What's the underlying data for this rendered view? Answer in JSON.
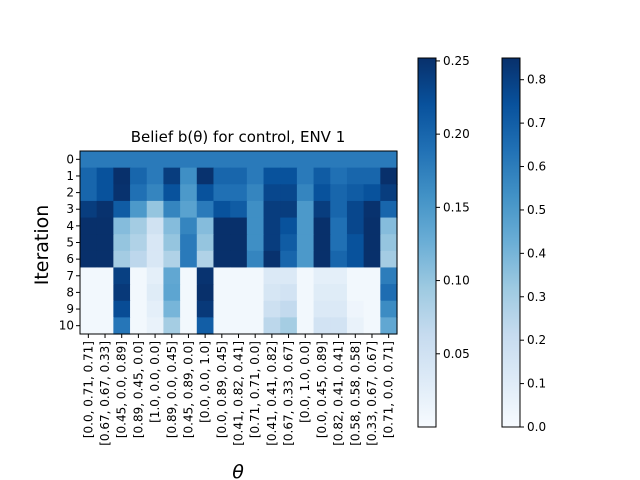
{
  "chart_data": {
    "type": "heatmap",
    "title": "Belief b(θ) for control, ENV 1",
    "xlabel": "θ",
    "ylabel": "Iteration",
    "y_categories": [
      "0",
      "1",
      "2",
      "3",
      "4",
      "5",
      "6",
      "7",
      "8",
      "9",
      "10"
    ],
    "x_categories": [
      "[0.0, 0.71, 0.71]",
      "[0.67, 0.67, 0.33]",
      "[0.45, 0.0, 0.89]",
      "[0.89, 0.45, 0.0]",
      "[1.0, 0.0, 0.0]",
      "[0.89, 0.0, 0.45]",
      "[0.45, 0.89, 0.0]",
      "[0.0, 0.0, 1.0]",
      "[0.0, 0.89, 0.45]",
      "[0.41, 0.82, 0.41]",
      "[0.71, 0.71, 0.0]",
      "[0.41, 0.41, 0.82]",
      "[0.67, 0.33, 0.67]",
      "[0.0, 1.0, 0.0]",
      "[0.0, 0.45, 0.89]",
      "[0.82, 0.41, 0.41]",
      "[0.58, 0.58, 0.58]",
      "[0.33, 0.67, 0.67]",
      "[0.71, 0.0, 0.71]"
    ],
    "values": [
      [
        0.18,
        0.18,
        0.18,
        0.18,
        0.18,
        0.18,
        0.18,
        0.18,
        0.18,
        0.18,
        0.18,
        0.18,
        0.18,
        0.18,
        0.18,
        0.18,
        0.18,
        0.18,
        0.18
      ],
      [
        0.2,
        0.22,
        0.27,
        0.2,
        0.18,
        0.24,
        0.16,
        0.25,
        0.2,
        0.2,
        0.18,
        0.22,
        0.22,
        0.18,
        0.21,
        0.19,
        0.2,
        0.2,
        0.27
      ],
      [
        0.2,
        0.22,
        0.25,
        0.19,
        0.17,
        0.22,
        0.15,
        0.22,
        0.19,
        0.19,
        0.17,
        0.23,
        0.23,
        0.17,
        0.22,
        0.2,
        0.21,
        0.22,
        0.24
      ],
      [
        0.24,
        0.25,
        0.21,
        0.15,
        0.1,
        0.17,
        0.14,
        0.18,
        0.22,
        0.21,
        0.16,
        0.24,
        0.24,
        0.15,
        0.24,
        0.2,
        0.23,
        0.25,
        0.2
      ],
      [
        0.33,
        0.31,
        0.11,
        0.09,
        0.05,
        0.11,
        0.17,
        0.11,
        0.29,
        0.29,
        0.16,
        0.24,
        0.22,
        0.15,
        0.27,
        0.19,
        0.23,
        0.29,
        0.11
      ],
      [
        0.34,
        0.32,
        0.1,
        0.08,
        0.04,
        0.1,
        0.18,
        0.1,
        0.31,
        0.31,
        0.16,
        0.24,
        0.21,
        0.15,
        0.29,
        0.19,
        0.22,
        0.3,
        0.1
      ],
      [
        0.33,
        0.3,
        0.09,
        0.07,
        0.04,
        0.08,
        0.18,
        0.08,
        0.3,
        0.29,
        0.17,
        0.25,
        0.2,
        0.15,
        0.3,
        0.2,
        0.22,
        0.29,
        0.09
      ],
      [
        0.02,
        0.02,
        0.8,
        0.02,
        0.08,
        0.45,
        0.02,
        0.84,
        0.02,
        0.02,
        0.02,
        0.12,
        0.12,
        0.02,
        0.08,
        0.08,
        0.02,
        0.02,
        0.6
      ],
      [
        0.02,
        0.02,
        0.82,
        0.02,
        0.1,
        0.46,
        0.02,
        0.85,
        0.02,
        0.02,
        0.02,
        0.14,
        0.16,
        0.02,
        0.1,
        0.1,
        0.02,
        0.02,
        0.65
      ],
      [
        0.02,
        0.02,
        0.76,
        0.02,
        0.08,
        0.4,
        0.02,
        0.82,
        0.02,
        0.02,
        0.02,
        0.18,
        0.22,
        0.02,
        0.12,
        0.12,
        0.04,
        0.02,
        0.55
      ],
      [
        0.02,
        0.02,
        0.62,
        0.02,
        0.06,
        0.3,
        0.02,
        0.7,
        0.02,
        0.02,
        0.02,
        0.24,
        0.3,
        0.02,
        0.16,
        0.16,
        0.06,
        0.02,
        0.45
      ]
    ],
    "colormap": "Blues",
    "colorbars": [
      {
        "range": [
          0.0,
          0.252
        ],
        "ticks": [
          "0.05",
          "0.10",
          "0.15",
          "0.20",
          "0.25"
        ],
        "tick_values": [
          0.05,
          0.1,
          0.15,
          0.2,
          0.25
        ]
      },
      {
        "range": [
          0.0,
          0.85
        ],
        "ticks": [
          "0.0",
          "0.1",
          "0.2",
          "0.3",
          "0.4",
          "0.5",
          "0.6",
          "0.7",
          "0.8"
        ],
        "tick_values": [
          0.0,
          0.1,
          0.2,
          0.3,
          0.4,
          0.5,
          0.6,
          0.7,
          0.8
        ]
      }
    ],
    "grid": false
  }
}
